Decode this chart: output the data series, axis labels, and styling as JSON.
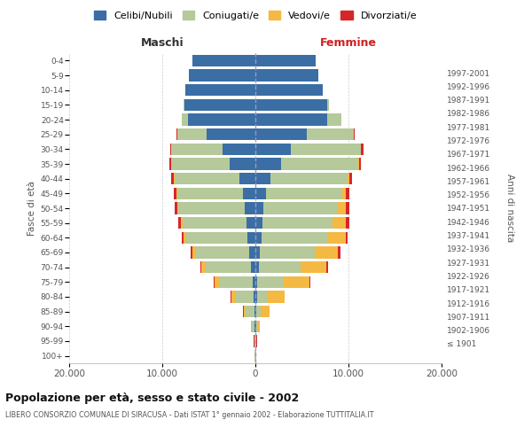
{
  "age_groups": [
    "100+",
    "95-99",
    "90-94",
    "85-89",
    "80-84",
    "75-79",
    "70-74",
    "65-69",
    "60-64",
    "55-59",
    "50-54",
    "45-49",
    "40-44",
    "35-39",
    "30-34",
    "25-29",
    "20-24",
    "15-19",
    "10-14",
    "5-9",
    "0-4"
  ],
  "birth_years": [
    "≤ 1901",
    "1902-1906",
    "1907-1911",
    "1912-1916",
    "1917-1921",
    "1922-1926",
    "1927-1931",
    "1932-1936",
    "1937-1941",
    "1942-1946",
    "1947-1951",
    "1952-1956",
    "1957-1961",
    "1962-1966",
    "1967-1971",
    "1972-1976",
    "1977-1981",
    "1982-1986",
    "1987-1991",
    "1992-1996",
    "1997-2001"
  ],
  "males": {
    "celibi": [
      20,
      40,
      70,
      130,
      200,
      300,
      500,
      700,
      900,
      1000,
      1100,
      1300,
      1700,
      2800,
      3500,
      5200,
      7200,
      7600,
      7500,
      7100,
      6800
    ],
    "coniugati": [
      30,
      80,
      280,
      900,
      1900,
      3500,
      4800,
      5700,
      6500,
      6800,
      7200,
      7100,
      7000,
      6200,
      5500,
      3200,
      700,
      100,
      20,
      5,
      3
    ],
    "vedovi": [
      5,
      20,
      80,
      250,
      500,
      600,
      500,
      400,
      300,
      200,
      100,
      80,
      60,
      50,
      30,
      20,
      10,
      5,
      2,
      1,
      1
    ],
    "divorziati": [
      2,
      5,
      10,
      20,
      30,
      80,
      150,
      200,
      250,
      300,
      250,
      280,
      250,
      200,
      150,
      100,
      30,
      10,
      3,
      1,
      1
    ]
  },
  "females": {
    "nubili": [
      20,
      40,
      70,
      100,
      150,
      200,
      350,
      500,
      700,
      800,
      900,
      1100,
      1600,
      2800,
      3800,
      5500,
      7700,
      7700,
      7200,
      6800,
      6500
    ],
    "coniugate": [
      20,
      50,
      150,
      500,
      1200,
      2800,
      4500,
      5900,
      7000,
      7500,
      8000,
      8200,
      8300,
      8200,
      7500,
      5000,
      1500,
      200,
      30,
      5,
      3
    ],
    "vedove": [
      10,
      50,
      250,
      900,
      1800,
      2800,
      2800,
      2500,
      2000,
      1400,
      800,
      400,
      200,
      100,
      50,
      30,
      10,
      5,
      2,
      1,
      1
    ],
    "divorziate": [
      2,
      5,
      10,
      20,
      30,
      80,
      150,
      200,
      250,
      350,
      350,
      350,
      320,
      280,
      250,
      150,
      40,
      10,
      3,
      1,
      1
    ]
  },
  "colors": {
    "celibi": "#3a6ea5",
    "coniugati": "#b5c99a",
    "vedovi": "#f4b942",
    "divorziati": "#d62728"
  },
  "xlim": 20000,
  "xticks": [
    -20000,
    -10000,
    0,
    10000,
    20000
  ],
  "xticklabels": [
    "20.000",
    "10.000",
    "0",
    "10.000",
    "20.000"
  ],
  "title": "Popolazione per età, sesso e stato civile - 2002",
  "subtitle": "LIBERO CONSORZIO COMUNALE DI SIRACUSA - Dati ISTAT 1° gennaio 2002 - Elaborazione TUTTITALIA.IT",
  "ylabel_left": "Fasce di età",
  "ylabel_right": "Anni di nascita",
  "label_maschi": "Maschi",
  "label_femmine": "Femmine",
  "legend_labels": [
    "Celibi/Nubili",
    "Coniugati/e",
    "Vedovi/e",
    "Divorziati/e"
  ]
}
